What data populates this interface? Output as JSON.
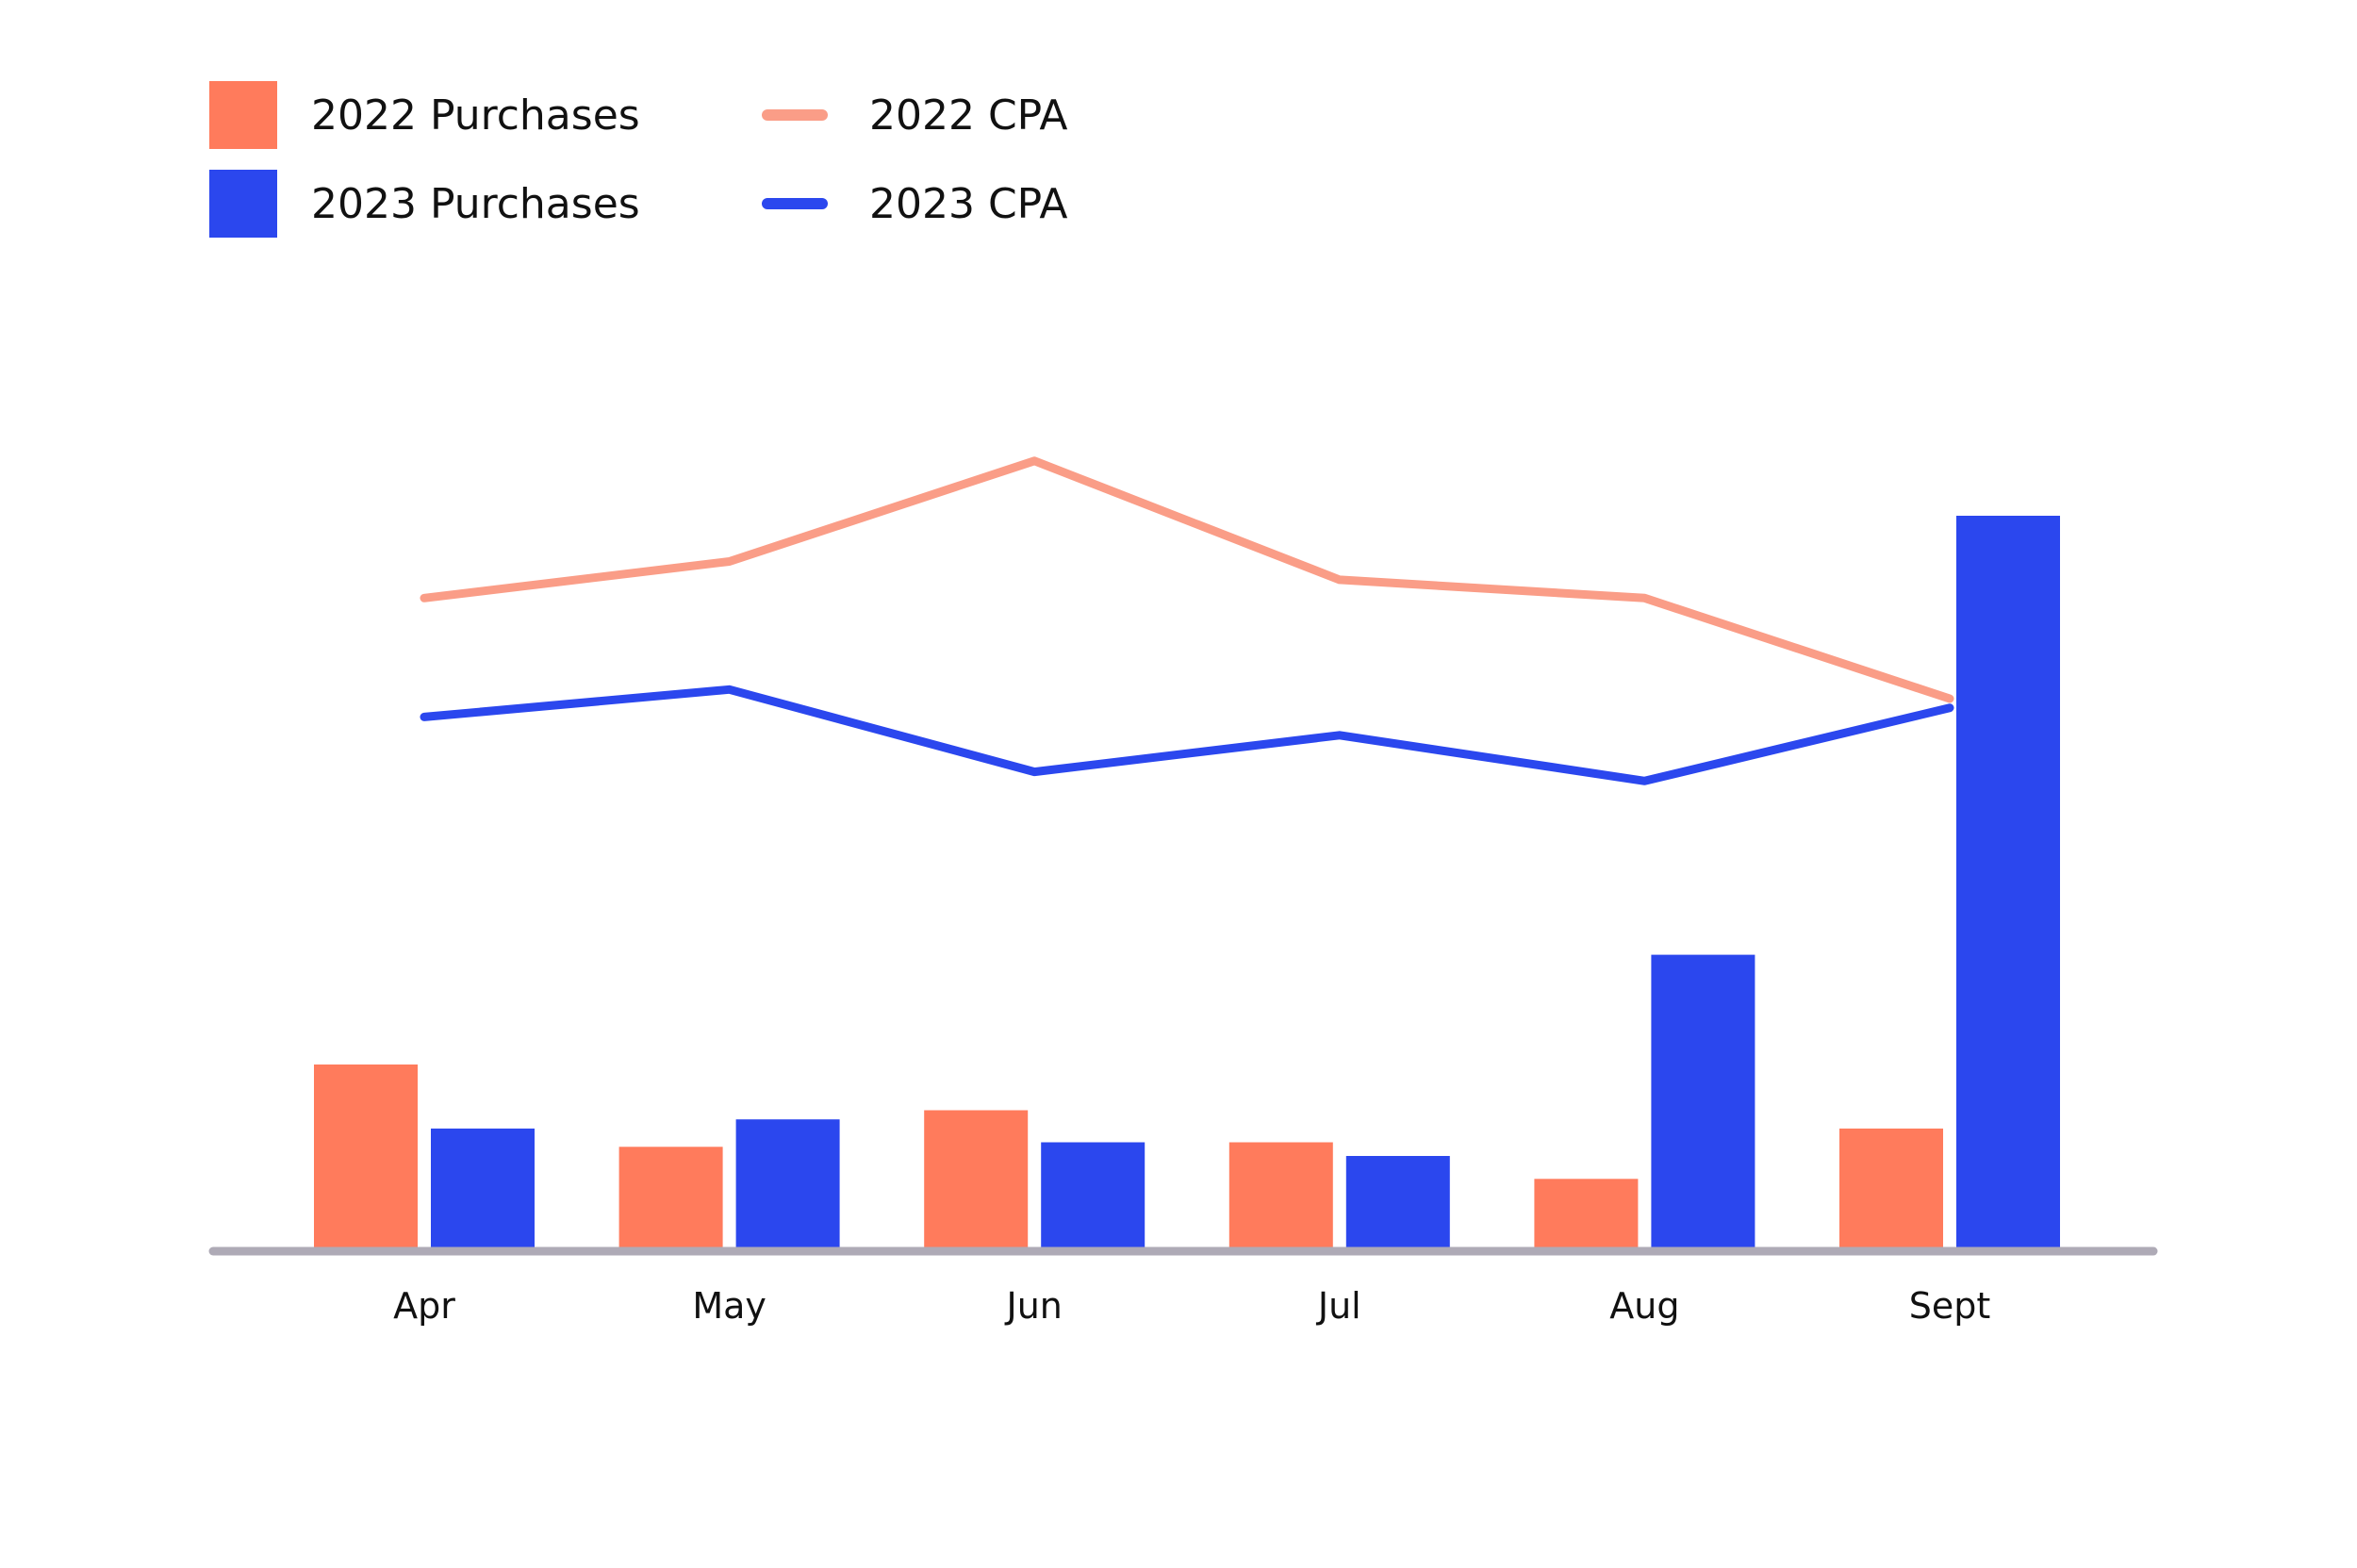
{
  "chart_data": {
    "type": "bar",
    "title": "",
    "xlabel": "",
    "ylabel": "",
    "categories": [
      "Apr",
      "May",
      "Jun",
      "Jul",
      "Aug",
      "Sept"
    ],
    "grid": false,
    "legend_position": "top-left",
    "bar_series": [
      {
        "name": "2022 Purchases",
        "color": "#FF7B5C",
        "values": [
          20,
          11,
          15,
          11.5,
          7.5,
          13
        ]
      },
      {
        "name": "2023 Purchases",
        "color": "#2B47EE",
        "values": [
          13,
          14,
          11.5,
          10,
          32,
          80
        ]
      }
    ],
    "bar_ylim": [
      0,
      100
    ],
    "line_series": [
      {
        "name": "2022 CPA",
        "color": "#FA9D87",
        "values": [
          71,
          75,
          86,
          73,
          71,
          60
        ]
      },
      {
        "name": "2023 CPA",
        "color": "#2B47EE",
        "values": [
          58,
          61,
          52,
          56,
          51,
          59
        ]
      }
    ],
    "line_ylim": [
      0,
      100
    ]
  }
}
